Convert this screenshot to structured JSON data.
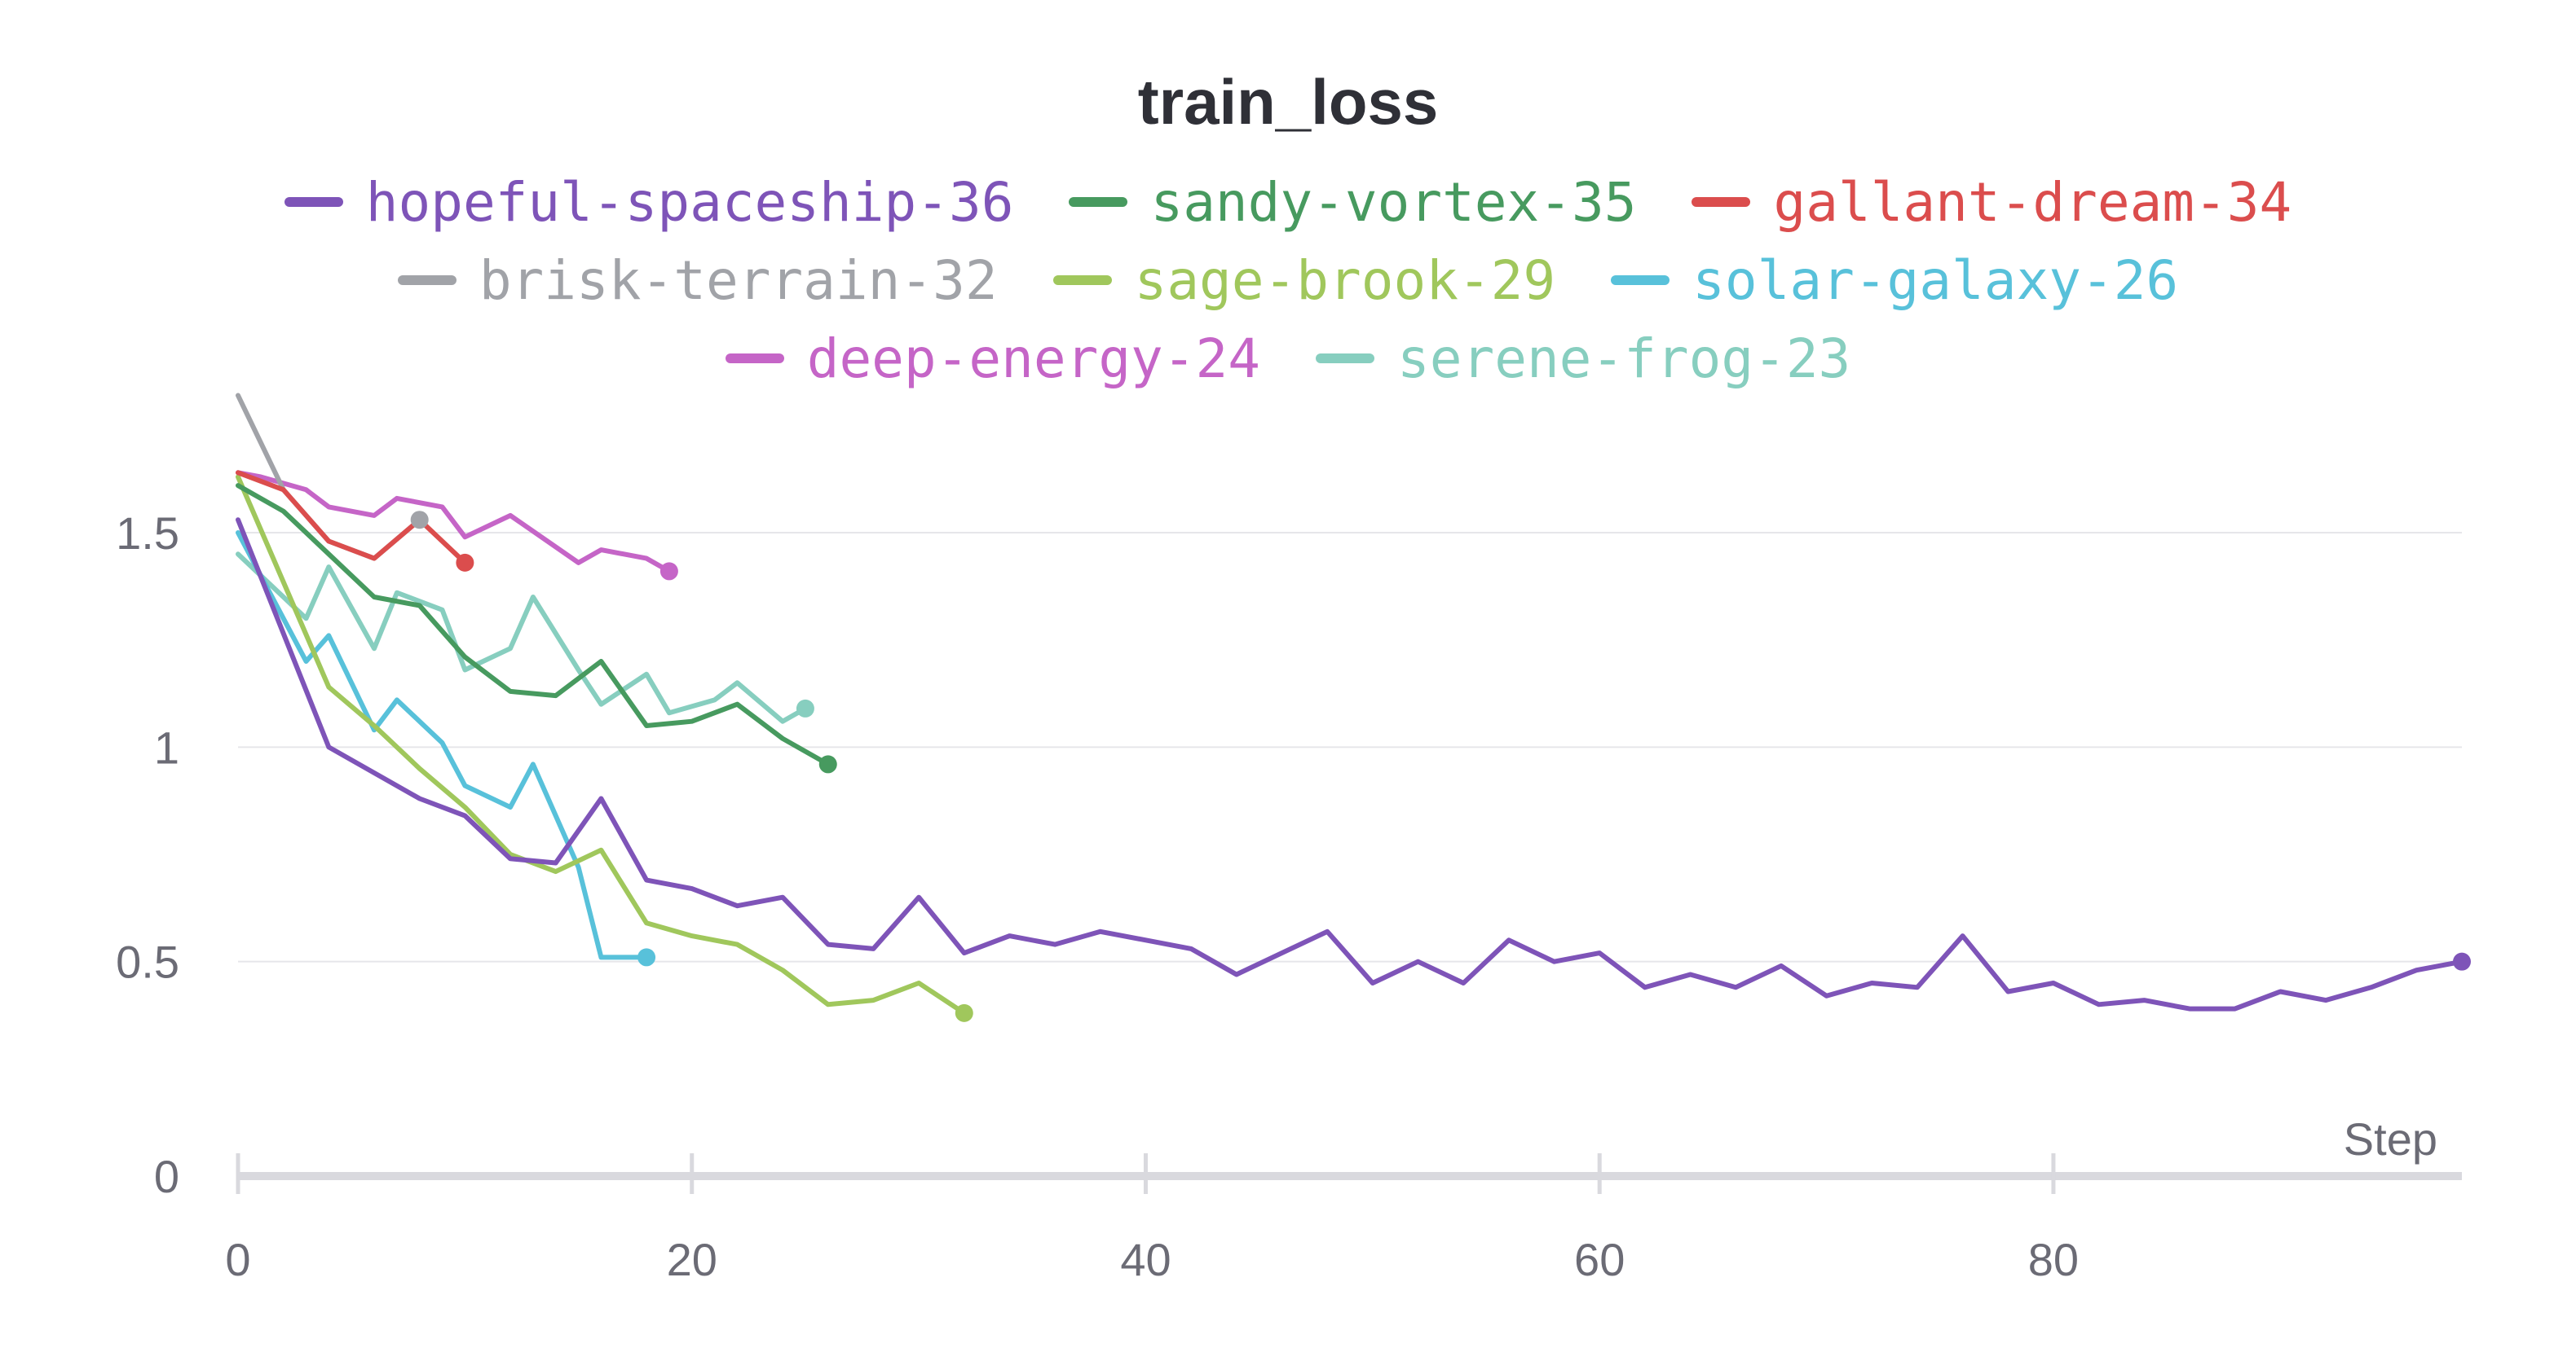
{
  "chart_data": {
    "type": "line",
    "title": "train_loss",
    "xlabel": "Step",
    "ylabel": "",
    "xlim": [
      0,
      98
    ],
    "ylim": [
      0,
      1.8
    ],
    "xticks": [
      "0",
      "20",
      "40",
      "60",
      "80"
    ],
    "yticks": [
      "0",
      "0.5",
      "1",
      "1.5"
    ],
    "legend_position": "top-center",
    "grid": true,
    "series": [
      {
        "name": "hopeful-spaceship-36",
        "color": "#7e54b8",
        "x": [
          0,
          4,
          8,
          10,
          12,
          14,
          16,
          18,
          20,
          22,
          24,
          26,
          28,
          30,
          32,
          34,
          36,
          38,
          40,
          42,
          44,
          46,
          48,
          50,
          52,
          54,
          56,
          58,
          60,
          62,
          64,
          66,
          68,
          70,
          72,
          74,
          76,
          78,
          80,
          82,
          84,
          86,
          88,
          90,
          92,
          94,
          96,
          98
        ],
        "y": [
          1.53,
          1.0,
          0.88,
          0.84,
          0.74,
          0.73,
          0.88,
          0.69,
          0.67,
          0.63,
          0.65,
          0.54,
          0.53,
          0.65,
          0.52,
          0.56,
          0.54,
          0.57,
          0.55,
          0.53,
          0.47,
          0.52,
          0.57,
          0.45,
          0.5,
          0.45,
          0.55,
          0.5,
          0.52,
          0.44,
          0.47,
          0.44,
          0.49,
          0.42,
          0.45,
          0.44,
          0.56,
          0.43,
          0.45,
          0.4,
          0.41,
          0.39,
          0.39,
          0.43,
          0.41,
          0.44,
          0.48,
          0.5
        ]
      },
      {
        "name": "sandy-vortex-35",
        "color": "#479a5f",
        "x": [
          0,
          2,
          4,
          6,
          8,
          10,
          12,
          14,
          16,
          18,
          20,
          22,
          24,
          26
        ],
        "y": [
          1.61,
          1.55,
          1.45,
          1.35,
          1.33,
          1.21,
          1.13,
          1.12,
          1.2,
          1.05,
          1.06,
          1.1,
          1.02,
          0.96
        ]
      },
      {
        "name": "gallant-dream-34",
        "color": "#db4d4d",
        "x": [
          0,
          2,
          4,
          6,
          8,
          10
        ],
        "y": [
          1.64,
          1.6,
          1.48,
          1.44,
          1.53,
          1.43
        ]
      },
      {
        "name": "brisk-terrain-32",
        "color": "#a1a3a8",
        "x": [
          0,
          2,
          4,
          6,
          8
        ],
        "y": [
          1.82,
          1.6,
          1.48,
          1.44,
          1.53
        ]
      },
      {
        "name": "sage-brook-29",
        "color": "#a0c75c",
        "x": [
          0,
          4,
          6,
          8,
          10,
          12,
          14,
          16,
          18,
          20,
          22,
          24,
          26,
          28,
          30,
          32
        ],
        "y": [
          1.63,
          1.14,
          1.05,
          0.95,
          0.86,
          0.75,
          0.71,
          0.76,
          0.59,
          0.56,
          0.54,
          0.48,
          0.4,
          0.41,
          0.45,
          0.38
        ]
      },
      {
        "name": "solar-galaxy-26",
        "color": "#58c1da",
        "x": [
          0,
          3,
          4,
          6,
          7,
          9,
          10,
          12,
          13,
          15,
          16,
          18
        ],
        "y": [
          1.5,
          1.2,
          1.26,
          1.04,
          1.11,
          1.01,
          0.91,
          0.86,
          0.96,
          0.72,
          0.51,
          0.51
        ]
      },
      {
        "name": "deep-energy-24",
        "color": "#c565c7",
        "x": [
          0,
          1,
          3,
          4,
          6,
          7,
          9,
          10,
          12,
          15,
          16,
          18,
          19
        ],
        "y": [
          1.64,
          1.63,
          1.6,
          1.56,
          1.54,
          1.58,
          1.56,
          1.49,
          1.54,
          1.43,
          1.46,
          1.44,
          1.41
        ]
      },
      {
        "name": "serene-frog-23",
        "color": "#87cebf",
        "x": [
          0,
          3,
          4,
          6,
          7,
          9,
          10,
          12,
          13,
          15,
          16,
          18,
          19,
          21,
          22,
          24,
          25
        ],
        "y": [
          1.45,
          1.3,
          1.42,
          1.23,
          1.36,
          1.32,
          1.18,
          1.23,
          1.35,
          1.18,
          1.1,
          1.17,
          1.08,
          1.11,
          1.15,
          1.06,
          1.09
        ]
      }
    ]
  }
}
